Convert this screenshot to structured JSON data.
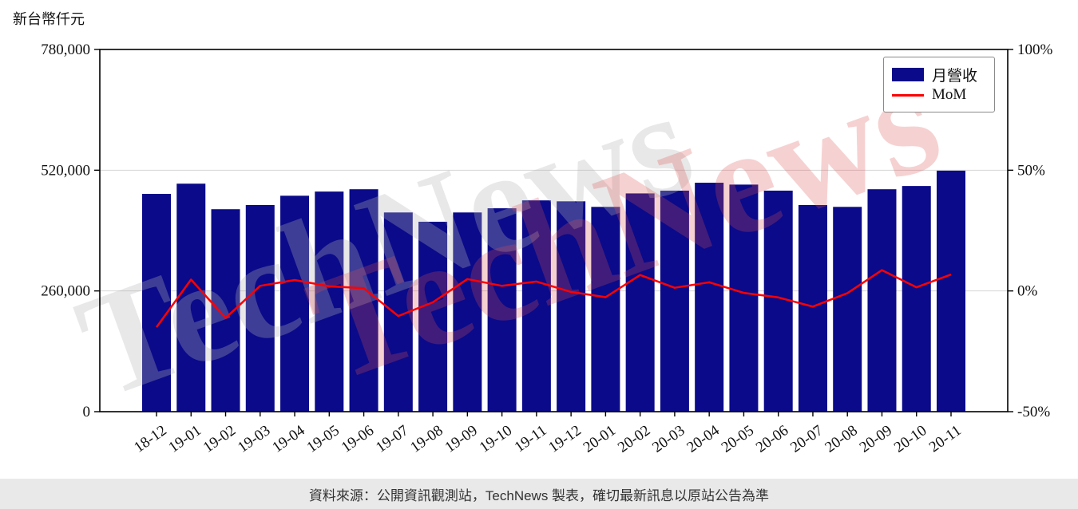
{
  "unit_label": "新台幣仟元",
  "legend": {
    "revenue_label": "月營收",
    "mom_label": "MoM"
  },
  "watermark": {
    "text": "TechNews"
  },
  "footer": {
    "text": "資料來源：公開資訊觀測站，TechNews 製表，確切最新訊息以原站公告為準"
  },
  "colors": {
    "bar": "#0a0a8a",
    "line": "#ff0000",
    "grid": "#d4d4d4",
    "axis": "#000000",
    "watermark_red": "#e05050",
    "watermark_gray": "#b5b5b5",
    "footer_bg": "#e9e9e9"
  },
  "chart_data": {
    "type": "bar",
    "title": "",
    "categories": [
      "18-12",
      "19-01",
      "19-02",
      "19-03",
      "19-04",
      "19-05",
      "19-06",
      "19-07",
      "19-08",
      "19-09",
      "19-10",
      "19-11",
      "19-12",
      "20-01",
      "20-02",
      "20-03",
      "20-04",
      "20-05",
      "20-06",
      "20-07",
      "20-08",
      "20-09",
      "20-10",
      "20-11"
    ],
    "series": [
      {
        "name": "月營收",
        "type": "bar",
        "axis": "left",
        "values": [
          469000,
          491000,
          436000,
          445000,
          465000,
          474000,
          479000,
          429000,
          409000,
          429000,
          438000,
          455000,
          453000,
          441000,
          470000,
          476000,
          493000,
          489000,
          476000,
          445000,
          441000,
          479000,
          486000,
          519000
        ]
      },
      {
        "name": "MoM",
        "type": "line",
        "axis": "right",
        "values": [
          -15,
          4.7,
          -11.2,
          2.1,
          4.5,
          1.9,
          1.1,
          -10.4,
          -4.7,
          4.9,
          2.1,
          3.9,
          -0.4,
          -2.6,
          6.6,
          1.3,
          3.6,
          -0.8,
          -2.7,
          -6.5,
          -0.9,
          8.6,
          1.5,
          6.8
        ]
      }
    ],
    "left_axis": {
      "label": "新台幣仟元",
      "range": [
        0,
        780000
      ],
      "ticks": [
        0,
        260000,
        520000,
        780000
      ],
      "tick_labels": [
        "0",
        "260,000",
        "520,000",
        "780,000"
      ]
    },
    "right_axis": {
      "label": "%",
      "range": [
        -50,
        100
      ],
      "ticks": [
        -50,
        0,
        50,
        100
      ],
      "tick_labels": [
        "-50%",
        "0%",
        "50%",
        "100%"
      ]
    },
    "grid": true,
    "legend_position": "upper right"
  }
}
